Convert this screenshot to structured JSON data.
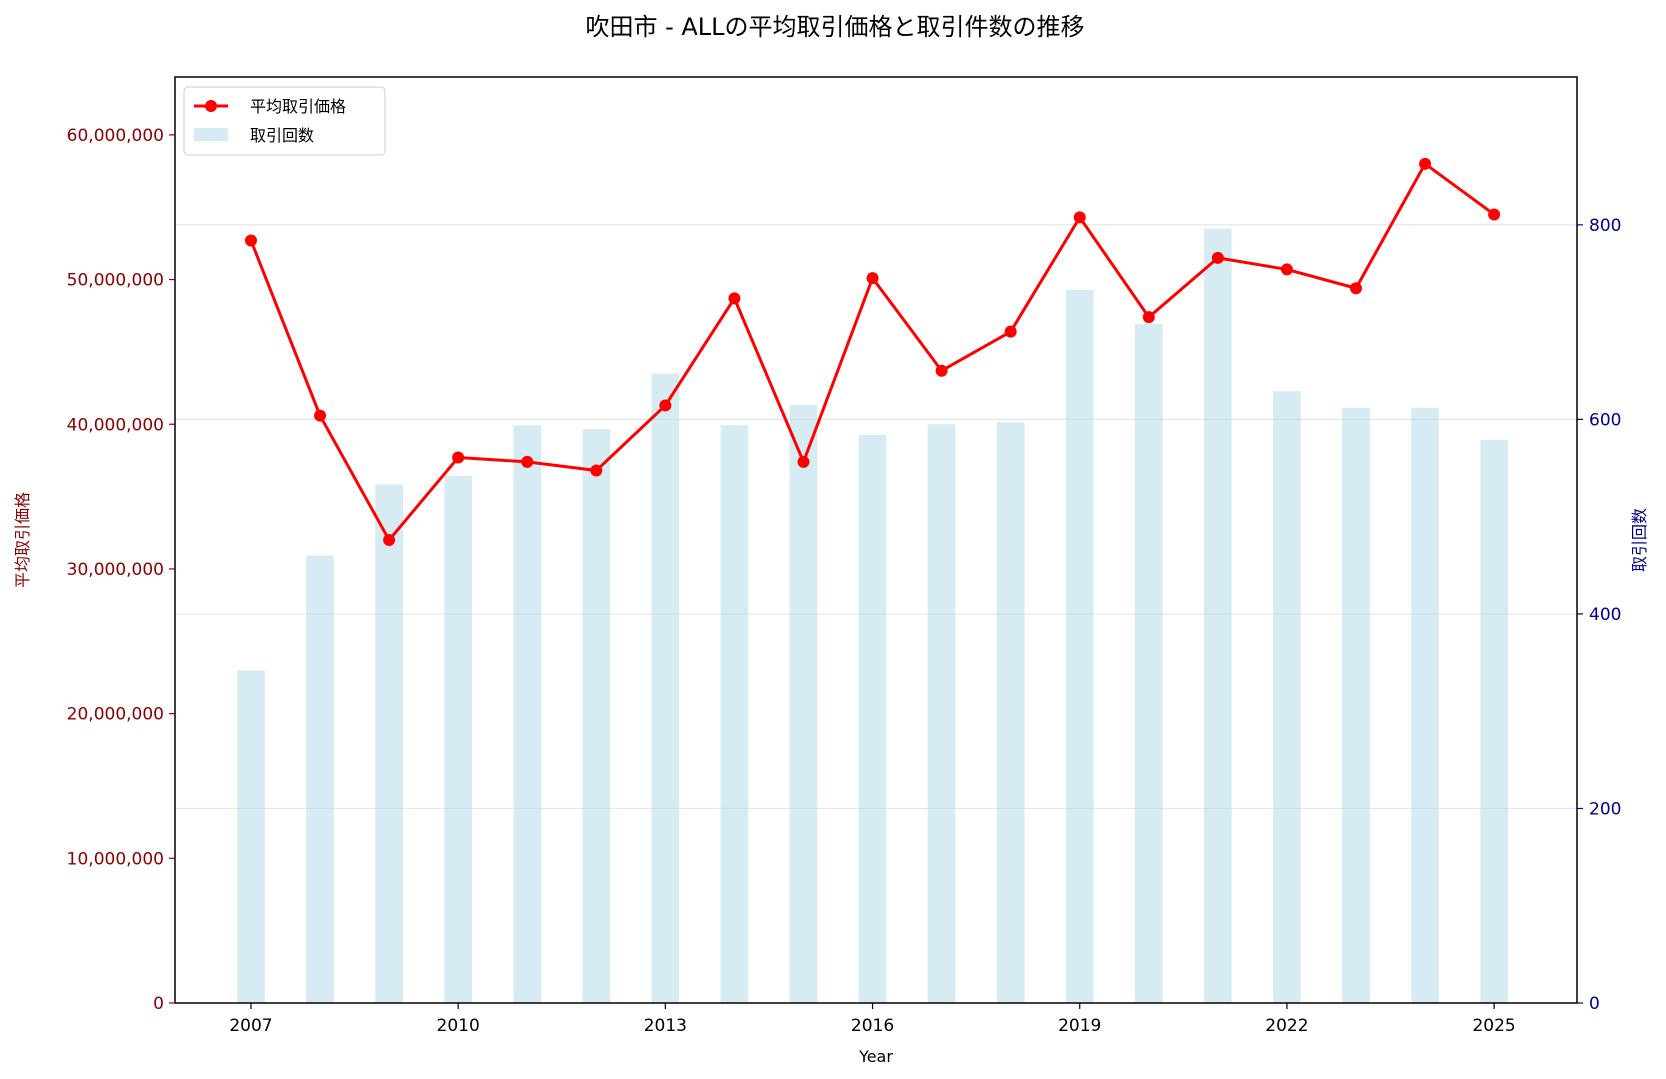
{
  "chart_data": {
    "type": "bar+line",
    "title": "吹田市 - ALLの平均取引価格と取引件数の推移",
    "xlabel": "Year",
    "ylabel_left": "平均取引価格",
    "ylabel_right": "取引回数",
    "x": [
      2007,
      2008,
      2009,
      2010,
      2011,
      2012,
      2013,
      2014,
      2015,
      2016,
      2017,
      2018,
      2019,
      2020,
      2021,
      2022,
      2023,
      2024,
      2025
    ],
    "x_ticks": [
      "2007",
      "2010",
      "2013",
      "2016",
      "2019",
      "2022",
      "2025"
    ],
    "x_tick_values": [
      2007,
      2010,
      2013,
      2016,
      2019,
      2022,
      2025
    ],
    "xlim": [
      2005.9,
      2026.2
    ],
    "y_left_ticks": [
      "0",
      "10,000,000",
      "20,000,000",
      "30,000,000",
      "40,000,000",
      "50,000,000",
      "60,000,000"
    ],
    "y_left_tick_values": [
      0,
      10000000,
      20000000,
      30000000,
      40000000,
      50000000,
      60000000
    ],
    "ylim_left": [
      0,
      64000000
    ],
    "y_right_ticks": [
      "0",
      "200",
      "400",
      "600",
      "800"
    ],
    "y_right_tick_values": [
      0,
      200,
      400,
      600,
      800
    ],
    "ylim_right": [
      0,
      952
    ],
    "grid": "horizontal, right axis",
    "legend_position": "top-left",
    "series": [
      {
        "name": "平均取引価格",
        "axis": "left",
        "kind": "line",
        "color": "#ff0000",
        "values": [
          52700000,
          40600000,
          32000000,
          37700000,
          37400000,
          36800000,
          41300000,
          48700000,
          37400000,
          50100000,
          43700000,
          46400000,
          54300000,
          47400000,
          51500000,
          50700000,
          49400000,
          58000000,
          54500000
        ]
      },
      {
        "name": "取引回数",
        "axis": "right",
        "kind": "bar",
        "color": "#add8e6",
        "values": [
          342,
          460,
          533,
          542,
          594,
          590,
          647,
          594,
          615,
          584,
          595,
          597,
          733,
          698,
          796,
          629,
          612,
          612,
          579
        ]
      }
    ]
  },
  "legend": {
    "line_label": "平均取引価格",
    "bar_label": "取引回数"
  }
}
